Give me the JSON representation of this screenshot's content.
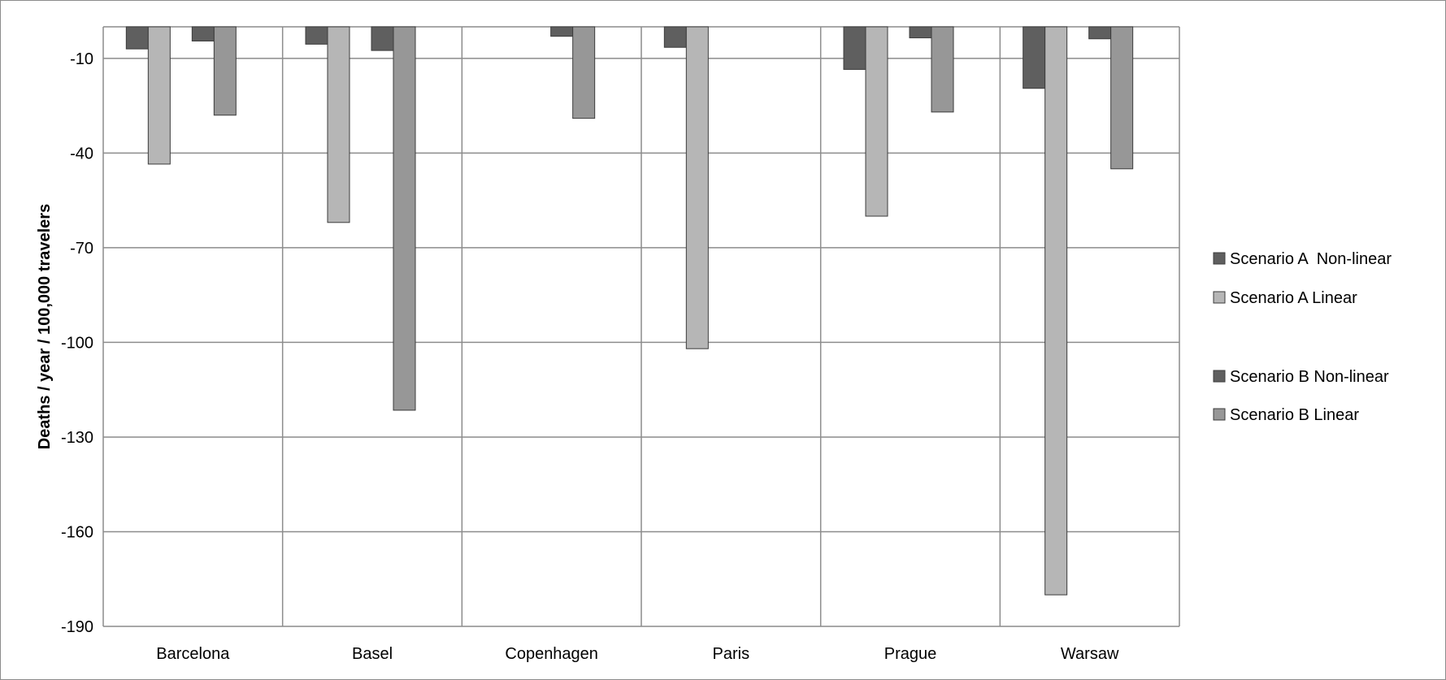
{
  "chart_data": {
    "type": "bar",
    "title": "",
    "xlabel": "",
    "ylabel": "Deaths / year / 100,000 travelers",
    "categories": [
      "Barcelona",
      "Basel",
      "Copenhagen",
      "Paris",
      "Prague",
      "Warsaw"
    ],
    "series": [
      {
        "name": "Scenario A  Non-linear",
        "color": "#5f5f5f",
        "values": [
          -7,
          -5.5,
          0,
          -6.5,
          -13.5,
          -19.5
        ]
      },
      {
        "name": "Scenario A Linear",
        "color": "#b6b6b6",
        "values": [
          -43.5,
          -62,
          0,
          -102,
          -60,
          -180
        ]
      },
      {
        "name": "Scenario B Non-linear",
        "color": "#5f5f5f",
        "values": [
          -4.5,
          -7.5,
          -3,
          0,
          -3.5,
          -3.8
        ]
      },
      {
        "name": "Scenario B Linear",
        "color": "#979797",
        "values": [
          -28,
          -121.5,
          -29,
          0,
          -27,
          -45
        ]
      }
    ],
    "ylim": [
      -190,
      0
    ],
    "yticks": [
      -10,
      -40,
      -70,
      -100,
      -130,
      -160,
      -190
    ],
    "grid": true,
    "legend_position": "right"
  }
}
